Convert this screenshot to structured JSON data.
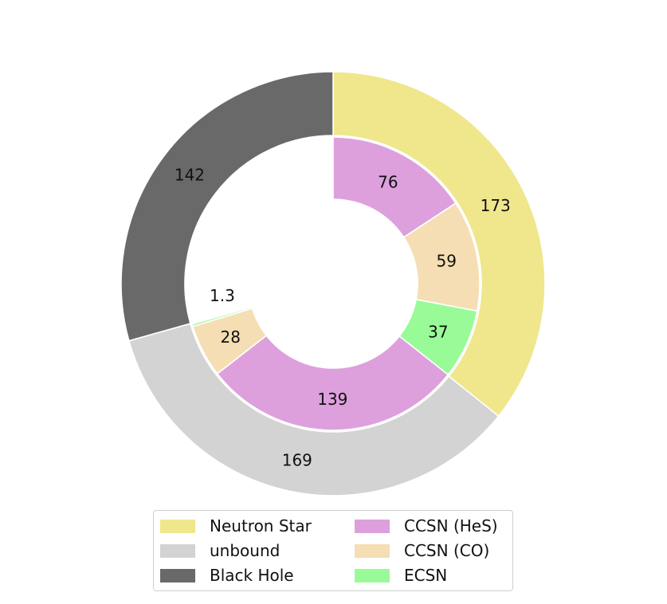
{
  "chart_data": {
    "type": "pie",
    "subtype": "nested-donut",
    "start": "top (12 o'clock), clockwise",
    "outer_ring": [
      {
        "label": "Neutron Star",
        "value": 173,
        "color": "#f0e68c"
      },
      {
        "label": "unbound",
        "value": 169,
        "color": "#d3d3d3"
      },
      {
        "label": "Black Hole",
        "value": 142,
        "color": "#696969"
      }
    ],
    "inner_ring": [
      {
        "label": "CCSN (HeS)",
        "value_label": "76",
        "value": 76,
        "color": "#dda0dd"
      },
      {
        "label": "CCSN (CO)",
        "value_label": "59",
        "value": 59,
        "color": "#f5deb3"
      },
      {
        "label": "ECSN",
        "value_label": "37",
        "value": 37,
        "color": "#98fb98"
      },
      {
        "label": "CCSN (HeS)",
        "value_label": "139",
        "value": 139,
        "color": "#dda0dd"
      },
      {
        "label": "CCSN (CO)",
        "value_label": "28",
        "value": 28,
        "color": "#f5deb3"
      },
      {
        "label": "ECSN",
        "value_label": "1.3",
        "value": 1.3,
        "color": "#98fb98"
      },
      {
        "label": "",
        "value_label": "",
        "value": 142,
        "color": "none"
      }
    ],
    "legend": {
      "placement": "bottom",
      "columns": [
        [
          {
            "label": "Neutron Star",
            "color": "#f0e68c"
          },
          {
            "label": "unbound",
            "color": "#d3d3d3"
          },
          {
            "label": "Black Hole",
            "color": "#696969"
          }
        ],
        [
          {
            "label": "CCSN (HeS)",
            "color": "#dda0dd"
          },
          {
            "label": "CCSN (CO)",
            "color": "#f5deb3"
          },
          {
            "label": "ECSN",
            "color": "#98fb98"
          }
        ]
      ]
    }
  }
}
